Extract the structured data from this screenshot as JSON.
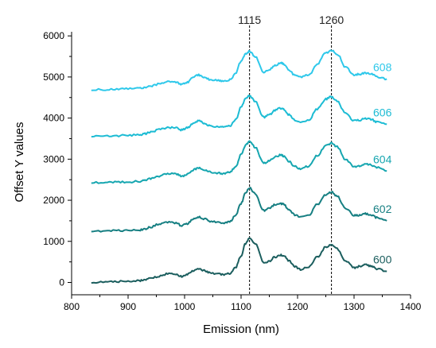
{
  "chart_data": {
    "type": "line",
    "xlabel": "Emission (nm)",
    "ylabel": "Offset Y values",
    "xlim": [
      800,
      1400
    ],
    "ylim": [
      -300,
      6100
    ],
    "xticks": [
      800,
      900,
      1000,
      1100,
      1200,
      1300,
      1400
    ],
    "yticks": [
      0,
      1000,
      2000,
      3000,
      4000,
      5000,
      6000
    ],
    "grid": false,
    "reference_lines": [
      {
        "x": 1115,
        "label": "1115"
      },
      {
        "x": 1260,
        "label": "1260"
      }
    ],
    "x": [
      835,
      860,
      880,
      900,
      920,
      930,
      940,
      955,
      970,
      985,
      995,
      1005,
      1015,
      1025,
      1035,
      1045,
      1060,
      1070,
      1080,
      1090,
      1100,
      1108,
      1115,
      1125,
      1140,
      1150,
      1160,
      1170,
      1175,
      1185,
      1195,
      1205,
      1220,
      1235,
      1250,
      1260,
      1270,
      1285,
      1300,
      1310,
      1320,
      1330,
      1340,
      1358
    ],
    "series": [
      {
        "name": "600",
        "color": "#1b5e5e",
        "values": [
          0,
          10,
          20,
          30,
          40,
          60,
          100,
          150,
          210,
          190,
          150,
          200,
          290,
          330,
          290,
          230,
          210,
          190,
          220,
          350,
          650,
          950,
          1100,
          950,
          480,
          520,
          620,
          670,
          660,
          520,
          390,
          320,
          380,
          620,
          860,
          920,
          820,
          520,
          360,
          390,
          430,
          400,
          330,
          270
        ]
      },
      {
        "name": "602",
        "color": "#167f82",
        "values": [
          1250,
          1255,
          1260,
          1265,
          1275,
          1300,
          1350,
          1420,
          1470,
          1450,
          1380,
          1430,
          1540,
          1590,
          1550,
          1490,
          1460,
          1450,
          1480,
          1620,
          1920,
          2190,
          2300,
          2160,
          1750,
          1800,
          1890,
          1920,
          1900,
          1770,
          1640,
          1590,
          1640,
          1900,
          2140,
          2200,
          2100,
          1810,
          1630,
          1640,
          1670,
          1650,
          1580,
          1500
        ]
      },
      {
        "name": "604",
        "color": "#16a6b0",
        "values": [
          2430,
          2435,
          2440,
          2445,
          2460,
          2480,
          2530,
          2590,
          2650,
          2640,
          2580,
          2630,
          2740,
          2790,
          2750,
          2690,
          2660,
          2650,
          2680,
          2810,
          3110,
          3340,
          3440,
          3290,
          2900,
          2960,
          3060,
          3100,
          3080,
          2950,
          2820,
          2770,
          2830,
          3090,
          3330,
          3390,
          3300,
          2990,
          2820,
          2840,
          2880,
          2860,
          2800,
          2710
        ]
      },
      {
        "name": "606",
        "color": "#1dbcd4",
        "values": [
          3560,
          3565,
          3570,
          3580,
          3595,
          3620,
          3660,
          3720,
          3770,
          3760,
          3710,
          3760,
          3870,
          3930,
          3880,
          3810,
          3790,
          3780,
          3810,
          3950,
          4260,
          4470,
          4540,
          4400,
          4020,
          4080,
          4190,
          4240,
          4220,
          4080,
          3950,
          3900,
          3960,
          4220,
          4460,
          4520,
          4420,
          4110,
          3930,
          3950,
          3990,
          3970,
          3900,
          3850
        ]
      },
      {
        "name": "608",
        "color": "#2ec8ea",
        "values": [
          4690,
          4695,
          4700,
          4710,
          4720,
          4740,
          4780,
          4830,
          4880,
          4870,
          4820,
          4870,
          4990,
          5050,
          5000,
          4940,
          4910,
          4900,
          4930,
          5080,
          5380,
          5570,
          5620,
          5490,
          5120,
          5180,
          5290,
          5340,
          5320,
          5170,
          5040,
          4990,
          5050,
          5320,
          5580,
          5650,
          5560,
          5240,
          5050,
          5070,
          5100,
          5080,
          5010,
          4950
        ]
      }
    ]
  }
}
